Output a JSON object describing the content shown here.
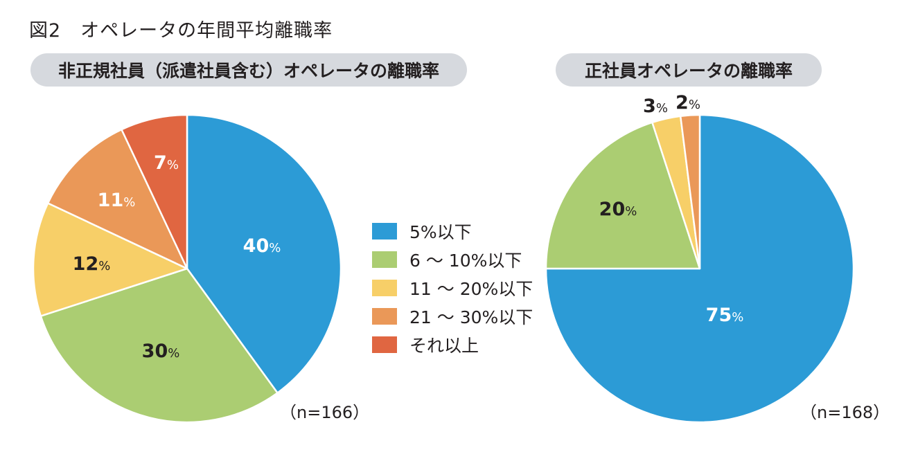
{
  "figure": {
    "title": "図2　オペレータの年間平均離職率"
  },
  "legend": {
    "items": [
      {
        "label": "5%以下",
        "color": "#2c9bd6"
      },
      {
        "label": "6 ～ 10%以下",
        "color": "#abcd72"
      },
      {
        "label": "11 ～ 20%以下",
        "color": "#f7cf68"
      },
      {
        "label": "21 ～ 30%以下",
        "color": "#ea9858"
      },
      {
        "label": "それ以上",
        "color": "#e06641"
      }
    ]
  },
  "charts": {
    "left": {
      "title": "非正規社員（派遣社員含む）オペレータの離職率",
      "n_label": "（n=166）"
    },
    "right": {
      "title": "正社員オペレータの離職率",
      "n_label": "（n=168）"
    }
  },
  "chart_data": [
    {
      "type": "pie",
      "title": "非正規社員（派遣社員含む）オペレータの離職率",
      "n": 166,
      "categories": [
        "5%以下",
        "6 ～ 10%以下",
        "11 ～ 20%以下",
        "21 ～ 30%以下",
        "それ以上"
      ],
      "values": [
        40,
        30,
        12,
        11,
        7
      ],
      "labels": [
        "40%",
        "30%",
        "12%",
        "11%",
        "7%"
      ],
      "colors": [
        "#2c9bd6",
        "#abcd72",
        "#f7cf68",
        "#ea9858",
        "#e06641"
      ],
      "start_angle": "12 o'clock, clockwise"
    },
    {
      "type": "pie",
      "title": "正社員オペレータの離職率",
      "n": 168,
      "categories": [
        "5%以下",
        "6 ～ 10%以下",
        "11 ～ 20%以下",
        "21 ～ 30%以下"
      ],
      "values": [
        75,
        20,
        3,
        2
      ],
      "labels": [
        "75%",
        "20%",
        "3%",
        "2%"
      ],
      "colors": [
        "#2c9bd6",
        "#abcd72",
        "#f7cf68",
        "#ea9858"
      ],
      "start_angle": "12 o'clock, clockwise"
    }
  ]
}
